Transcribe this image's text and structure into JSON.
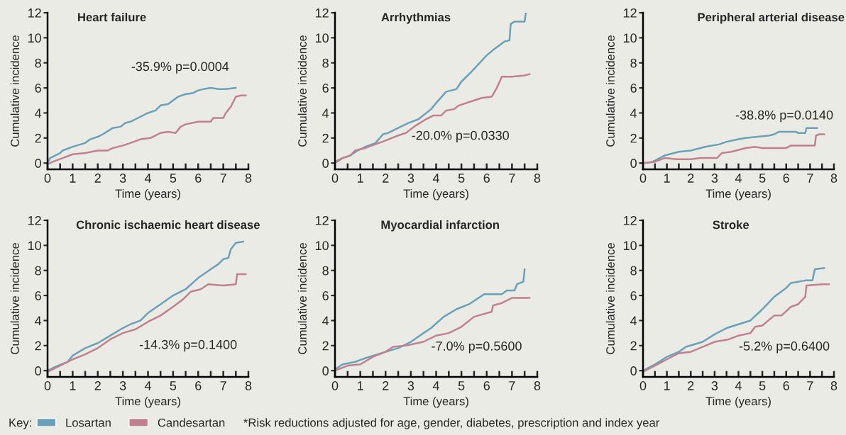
{
  "chart_data": [
    {
      "type": "line",
      "title": "Heart failure",
      "xlabel": "Time (years)",
      "ylabel": "Cumulative incidence",
      "legend": "bottom",
      "legend_title": "Key:",
      "grid": false,
      "marker": "none",
      "line_style": "solid",
      "xlim": [
        0,
        8
      ],
      "ylim": [
        -0.5,
        12
      ],
      "xticks": [
        0,
        {
          "value": 0.5,
          "label": null
        },
        1,
        {
          "value": 1.5,
          "label": null
        },
        2,
        {
          "value": 2.5,
          "label": null
        },
        3,
        {
          "value": 3.5,
          "label": null
        },
        4,
        {
          "value": 4.5,
          "label": null
        },
        5,
        {
          "value": 5.5,
          "label": null
        },
        6,
        {
          "value": 6.5,
          "label": null
        },
        7,
        {
          "value": 7.5,
          "label": null
        },
        8
      ],
      "yticks": [
        0,
        2,
        4,
        6,
        8,
        10,
        12
      ],
      "annotations": [
        "-35.9% p=0.0004",
        "*Risk reductions adjusted for age, gender, diabetes, prescription and index year"
      ],
      "series": [
        {
          "name": "Losartan",
          "color": "#6aa0b8",
          "x": [
            0,
            0.1,
            0.5,
            0.6,
            1,
            1.5,
            1.7,
            2,
            2.2,
            2.6,
            2.9,
            3.1,
            3.3,
            3.7,
            4,
            4.3,
            4.5,
            4.8,
            5,
            5.2,
            5.5,
            5.8,
            6,
            6.2,
            6.5,
            6.8,
            7.1,
            7.5
          ],
          "values": [
            0,
            0.4,
            0.8,
            1.0,
            1.3,
            1.6,
            1.9,
            2.1,
            2.3,
            2.8,
            2.9,
            3.2,
            3.3,
            3.7,
            4.0,
            4.2,
            4.6,
            4.7,
            5.0,
            5.3,
            5.5,
            5.6,
            5.8,
            5.9,
            6.0,
            5.9,
            5.9,
            6.0
          ]
        },
        {
          "name": "Candesartan",
          "color": "#c0808f",
          "x": [
            0,
            0.2,
            0.6,
            1,
            1.5,
            2,
            2.4,
            2.6,
            3,
            3.3,
            3.7,
            4.1,
            4.5,
            4.8,
            5.1,
            5.3,
            5.5,
            6.0,
            6.5,
            6.6,
            7.0,
            7.1,
            7.3,
            7.5,
            7.7,
            7.9
          ],
          "values": [
            -0.1,
            0.1,
            0.4,
            0.7,
            0.8,
            1.0,
            1.0,
            1.2,
            1.4,
            1.6,
            1.9,
            2.0,
            2.4,
            2.5,
            2.4,
            2.9,
            3.1,
            3.3,
            3.3,
            3.6,
            3.6,
            4.0,
            4.5,
            5.3,
            5.4,
            5.4
          ]
        }
      ]
    },
    {
      "type": "line",
      "title": "Arrhythmias",
      "xlabel": "Time (years)",
      "ylabel": "Cumulative incidence",
      "grid": false,
      "marker": "none",
      "line_style": "solid",
      "xlim": [
        0,
        8
      ],
      "ylim": [
        -0.5,
        12
      ],
      "xticks": [
        0,
        {
          "value": 0.5,
          "label": null
        },
        1,
        {
          "value": 1.5,
          "label": null
        },
        2,
        {
          "value": 2.5,
          "label": null
        },
        3,
        {
          "value": 3.5,
          "label": null
        },
        4,
        {
          "value": 4.5,
          "label": null
        },
        5,
        {
          "value": 5.5,
          "label": null
        },
        6,
        {
          "value": 6.5,
          "label": null
        },
        7,
        {
          "value": 7.5,
          "label": null
        },
        8
      ],
      "yticks": [
        0,
        2,
        4,
        6,
        8,
        10,
        12
      ],
      "annotations": [
        "-20.0% p=0.0330"
      ],
      "series": [
        {
          "color": "#6aa0b8",
          "x": [
            0,
            0.3,
            0.6,
            0.9,
            1.2,
            1.6,
            1.9,
            2.1,
            2.5,
            2.9,
            3.3,
            3.8,
            4.0,
            4.4,
            4.8,
            5.0,
            5.4,
            6.0,
            6.3,
            6.7,
            6.9,
            6.95,
            7.1,
            7.3,
            7.5,
            7.55
          ],
          "values": [
            0.1,
            0.4,
            0.6,
            1.0,
            1.3,
            1.6,
            2.3,
            2.4,
            2.8,
            3.2,
            3.5,
            4.3,
            4.8,
            5.7,
            5.9,
            6.5,
            7.3,
            8.6,
            9.1,
            9.7,
            9.8,
            11.1,
            11.3,
            11.3,
            11.3,
            12.0
          ]
        },
        {
          "color": "#c0808f",
          "x": [
            0,
            0.3,
            0.6,
            0.8,
            1.2,
            1.6,
            2,
            2.5,
            2.8,
            3.2,
            3.6,
            3.9,
            4.2,
            4.4,
            4.7,
            4.9,
            5.5,
            5.8,
            6.2,
            6.4,
            6.6,
            7.0,
            7.5,
            7.7
          ],
          "values": [
            0,
            0.4,
            0.6,
            1.0,
            1.2,
            1.5,
            1.8,
            2.2,
            2.4,
            3.0,
            3.5,
            3.8,
            3.8,
            4.2,
            4.3,
            4.6,
            5.0,
            5.2,
            5.3,
            6.0,
            6.9,
            6.9,
            7.0,
            7.1
          ]
        }
      ]
    },
    {
      "type": "line",
      "title": "Peripheral arterial disease",
      "xlabel": "Time (years)",
      "ylabel": "Cumulative incidence",
      "grid": false,
      "marker": "none",
      "line_style": "solid",
      "xlim": [
        0,
        8
      ],
      "ylim": [
        -0.5,
        12
      ],
      "xticks": [
        0,
        {
          "value": 0.5,
          "label": null
        },
        1,
        {
          "value": 1.5,
          "label": null
        },
        2,
        {
          "value": 2.5,
          "label": null
        },
        3,
        {
          "value": 3.5,
          "label": null
        },
        4,
        {
          "value": 4.5,
          "label": null
        },
        5,
        {
          "value": 5.5,
          "label": null
        },
        6,
        {
          "value": 6.5,
          "label": null
        },
        7,
        {
          "value": 7.5,
          "label": null
        },
        8
      ],
      "yticks": [
        0,
        2,
        4,
        6,
        8,
        10,
        12
      ],
      "annotations": [
        "-38.8% p=0.0140"
      ],
      "series": [
        {
          "color": "#6aa0b8",
          "x": [
            0,
            0.4,
            0.9,
            1.5,
            2,
            2.6,
            3.2,
            3.5,
            4,
            4.3,
            4.8,
            5.3,
            5.5,
            5.7,
            6.0,
            6.4,
            6.5,
            6.8,
            6.85,
            7.3
          ],
          "values": [
            0,
            0.1,
            0.6,
            0.9,
            1.0,
            1.3,
            1.5,
            1.7,
            1.9,
            2.0,
            2.1,
            2.2,
            2.3,
            2.5,
            2.5,
            2.5,
            2.4,
            2.4,
            2.8,
            2.8
          ]
        },
        {
          "color": "#c0808f",
          "x": [
            0,
            0.5,
            0.9,
            1.4,
            2,
            2.4,
            3.1,
            3.3,
            3.7,
            4.3,
            4.7,
            5.0,
            6.0,
            6.2,
            6.8,
            7.2,
            7.25,
            7.4,
            7.6
          ],
          "values": [
            0,
            0.1,
            0.4,
            0.3,
            0.3,
            0.4,
            0.4,
            0.8,
            0.9,
            1.2,
            1.3,
            1.2,
            1.2,
            1.4,
            1.4,
            1.4,
            2.2,
            2.3,
            2.3
          ]
        }
      ]
    },
    {
      "type": "line",
      "title": "Chronic ischaemic heart disease",
      "xlabel": "Time (years)",
      "ylabel": "Cumulative incidence",
      "grid": false,
      "marker": "none",
      "line_style": "solid",
      "xlim": [
        0,
        8
      ],
      "ylim": [
        -0.5,
        12
      ],
      "xticks": [
        0,
        {
          "value": 0.5,
          "label": null
        },
        1,
        {
          "value": 1.5,
          "label": null
        },
        2,
        {
          "value": 2.5,
          "label": null
        },
        3,
        {
          "value": 3.5,
          "label": null
        },
        4,
        {
          "value": 4.5,
          "label": null
        },
        5,
        {
          "value": 5.5,
          "label": null
        },
        6,
        {
          "value": 6.5,
          "label": null
        },
        7,
        {
          "value": 7.5,
          "label": null
        },
        8
      ],
      "yticks": [
        0,
        2,
        4,
        6,
        8,
        10,
        12
      ],
      "annotations": [
        "-14.3% p=0.1400"
      ],
      "series": [
        {
          "color": "#6aa0b8",
          "x": [
            0,
            0.3,
            0.8,
            1,
            1.5,
            2,
            2.5,
            3,
            3.3,
            3.7,
            4,
            4.5,
            5,
            5.5,
            6,
            6.5,
            6.8,
            7.0,
            7.2,
            7.3,
            7.5,
            7.8
          ],
          "values": [
            0,
            0.3,
            0.7,
            1.2,
            1.8,
            2.2,
            2.8,
            3.4,
            3.7,
            4.0,
            4.6,
            5.3,
            6.0,
            6.5,
            7.4,
            8.1,
            8.5,
            8.9,
            9.0,
            9.7,
            10.2,
            10.3
          ]
        },
        {
          "color": "#c0808f",
          "x": [
            0,
            0.5,
            1,
            1.5,
            2,
            2.5,
            3,
            3.5,
            4,
            4.5,
            5,
            5.4,
            5.7,
            6.1,
            6.4,
            7,
            7.5,
            7.55,
            7.9
          ],
          "values": [
            -0.1,
            0.4,
            0.9,
            1.3,
            1.8,
            2.5,
            3.0,
            3.3,
            3.9,
            4.4,
            5.1,
            5.7,
            6.3,
            6.5,
            6.9,
            6.8,
            6.9,
            7.7,
            7.7
          ]
        }
      ]
    },
    {
      "type": "line",
      "title": "Myocardial infarction",
      "xlabel": "Time (years)",
      "ylabel": "Cumulative incidence",
      "grid": false,
      "marker": "none",
      "line_style": "solid",
      "xlim": [
        0,
        8
      ],
      "ylim": [
        -0.5,
        12
      ],
      "xticks": [
        0,
        {
          "value": 0.5,
          "label": null
        },
        1,
        {
          "value": 1.5,
          "label": null
        },
        2,
        {
          "value": 2.5,
          "label": null
        },
        3,
        {
          "value": 3.5,
          "label": null
        },
        4,
        {
          "value": 4.5,
          "label": null
        },
        5,
        {
          "value": 5.5,
          "label": null
        },
        6,
        {
          "value": 6.5,
          "label": null
        },
        7,
        {
          "value": 7.5,
          "label": null
        },
        8
      ],
      "yticks": [
        0,
        2,
        4,
        6,
        8,
        10,
        12
      ],
      "annotations": [
        "-7.0% p=0.5600"
      ],
      "series": [
        {
          "color": "#6aa0b8",
          "x": [
            0,
            0.3,
            0.8,
            1.2,
            2,
            2.5,
            3,
            3.5,
            3.8,
            4.3,
            4.8,
            5.3,
            5.9,
            6.6,
            6.8,
            7.1,
            7.2,
            7.45,
            7.5
          ],
          "values": [
            0.1,
            0.5,
            0.7,
            1.0,
            1.5,
            1.8,
            2.3,
            3.0,
            3.4,
            4.3,
            4.9,
            5.3,
            6.1,
            6.1,
            6.4,
            6.4,
            6.9,
            7.1,
            8.1
          ]
        },
        {
          "color": "#c0808f",
          "x": [
            0,
            0.5,
            1,
            1.5,
            2,
            2.3,
            2.8,
            3.5,
            4.0,
            4.5,
            5.0,
            5.5,
            6.2,
            6.25,
            6.6,
            7.0,
            7.7
          ],
          "values": [
            0,
            0.4,
            0.5,
            1.1,
            1.5,
            1.9,
            2.0,
            2.3,
            2.8,
            3.0,
            3.5,
            4.3,
            4.7,
            5.2,
            5.4,
            5.8,
            5.8
          ]
        }
      ]
    },
    {
      "type": "line",
      "title": "Stroke",
      "xlabel": "Time (years)",
      "ylabel": "Cumulative incidence",
      "grid": false,
      "marker": "none",
      "line_style": "solid",
      "xlim": [
        0,
        8
      ],
      "ylim": [
        -0.5,
        12
      ],
      "xticks": [
        0,
        {
          "value": 0.5,
          "label": null
        },
        1,
        {
          "value": 1.5,
          "label": null
        },
        2,
        {
          "value": 2.5,
          "label": null
        },
        3,
        {
          "value": 3.5,
          "label": null
        },
        4,
        {
          "value": 4.5,
          "label": null
        },
        5,
        {
          "value": 5.5,
          "label": null
        },
        6,
        {
          "value": 6.5,
          "label": null
        },
        7,
        {
          "value": 7.5,
          "label": null
        },
        8
      ],
      "yticks": [
        0,
        2,
        4,
        6,
        8,
        10,
        12
      ],
      "annotations": [
        "-5.2% p=0.6400"
      ],
      "series": [
        {
          "color": "#6aa0b8",
          "x": [
            0,
            0.5,
            1,
            1.5,
            1.8,
            2.5,
            3,
            3.5,
            4,
            4.5,
            5,
            5.5,
            6,
            6.2,
            6.8,
            7.1,
            7.2,
            7.6
          ],
          "values": [
            0,
            0.5,
            1.1,
            1.5,
            1.9,
            2.3,
            2.9,
            3.4,
            3.7,
            4.0,
            4.9,
            5.9,
            6.6,
            7.0,
            7.2,
            7.2,
            8.1,
            8.2
          ]
        },
        {
          "color": "#c0808f",
          "x": [
            0,
            0.5,
            1,
            1.5,
            2,
            2.5,
            3,
            3.6,
            4,
            4.5,
            4.7,
            5.0,
            5.5,
            5.8,
            6.2,
            6.5,
            6.8,
            6.85,
            7.5,
            7.8
          ],
          "values": [
            -0.1,
            0.4,
            0.9,
            1.4,
            1.5,
            1.9,
            2.3,
            2.5,
            2.8,
            3.0,
            3.5,
            3.6,
            4.4,
            4.4,
            5.1,
            5.3,
            5.9,
            6.8,
            6.9,
            6.9
          ]
        }
      ]
    }
  ]
}
